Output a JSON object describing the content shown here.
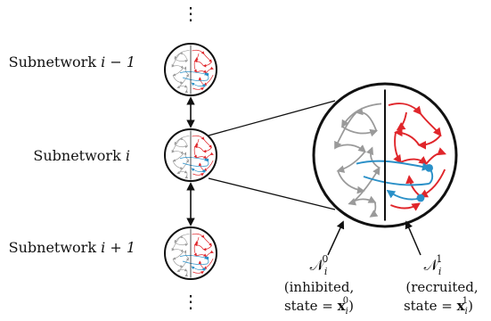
{
  "colors": {
    "inhibited": "#9a9a9a",
    "recruited": "#e0262b",
    "coupling": "#2a90c8",
    "outline": "#111111"
  },
  "subnetworks": [
    {
      "label": "Subnetwork",
      "index": "i − 1"
    },
    {
      "label": "Subnetwork",
      "index": "i"
    },
    {
      "label": "Subnetwork",
      "index": "i + 1"
    }
  ],
  "vdots": "⋮",
  "inhibited": {
    "symbol": "𝒩",
    "sub": "i",
    "sup": "0",
    "desc": "(inhibited,",
    "state_prefix": "state = ",
    "state_var": "x",
    "state_sub": "i",
    "state_sup": "0",
    "state_close": ")"
  },
  "recruited": {
    "symbol": "𝒩",
    "sub": "i",
    "sup": "1",
    "desc": "(recruited,",
    "state_prefix": "state = ",
    "state_var": "x",
    "state_sub": "i",
    "state_sup": "1",
    "state_close": ")"
  }
}
